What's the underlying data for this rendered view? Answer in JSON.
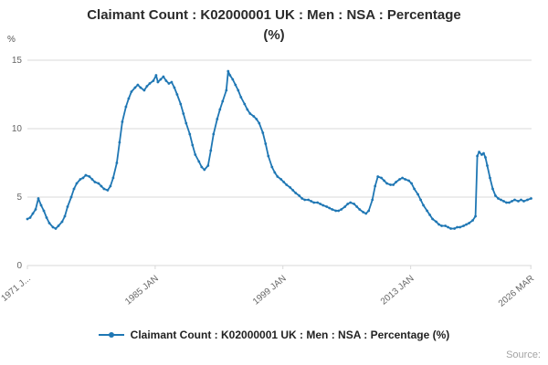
{
  "title": {
    "line1": "Claimant Count : K02000001 UK : Men : NSA : Percentage",
    "line2": "(%)"
  },
  "axes": {
    "y_unit_label": "%"
  },
  "legend": {
    "label": "Claimant Count : K02000001 UK : Men : NSA : Percentage (%)"
  },
  "source_label": "Source:",
  "chart_data": {
    "type": "line",
    "title": "Claimant Count : K02000001 UK : Men : NSA : Percentage (%)",
    "xlabel": "",
    "ylabel": "%",
    "ylim": [
      0,
      15
    ],
    "yticks": [
      0,
      5,
      10,
      15
    ],
    "xlim": [
      1971.0,
      2026.25
    ],
    "xticks": [
      {
        "x": 1971.0,
        "label": "1971 J..."
      },
      {
        "x": 1985.0,
        "label": "1985 JAN"
      },
      {
        "x": 1999.0,
        "label": "1999 JAN"
      },
      {
        "x": 2013.0,
        "label": "2013 JAN"
      },
      {
        "x": 2026.17,
        "label": "2026 MAR"
      }
    ],
    "grid": true,
    "legend_position": "bottom",
    "line_color": "#1f77b4",
    "grid_color": "#d9d9d9",
    "tick_label_color": "#666666",
    "series": [
      {
        "name": "Claimant Count : K02000001 UK : Men : NSA : Percentage (%)",
        "color": "#1f77b4",
        "x_unit": "decimal_year",
        "points": [
          [
            1971.0,
            3.4
          ],
          [
            1971.3,
            3.5
          ],
          [
            1971.6,
            3.8
          ],
          [
            1971.9,
            4.1
          ],
          [
            1972.2,
            4.9
          ],
          [
            1972.5,
            4.4
          ],
          [
            1972.8,
            4.0
          ],
          [
            1973.1,
            3.5
          ],
          [
            1973.4,
            3.1
          ],
          [
            1973.8,
            2.8
          ],
          [
            1974.1,
            2.7
          ],
          [
            1974.4,
            2.9
          ],
          [
            1974.8,
            3.2
          ],
          [
            1975.1,
            3.6
          ],
          [
            1975.4,
            4.3
          ],
          [
            1975.8,
            5.0
          ],
          [
            1976.1,
            5.6
          ],
          [
            1976.4,
            6.0
          ],
          [
            1976.8,
            6.3
          ],
          [
            1977.1,
            6.4
          ],
          [
            1977.4,
            6.6
          ],
          [
            1977.8,
            6.5
          ],
          [
            1978.1,
            6.3
          ],
          [
            1978.4,
            6.1
          ],
          [
            1978.8,
            6.0
          ],
          [
            1979.1,
            5.8
          ],
          [
            1979.4,
            5.6
          ],
          [
            1979.8,
            5.5
          ],
          [
            1980.1,
            5.8
          ],
          [
            1980.4,
            6.4
          ],
          [
            1980.8,
            7.5
          ],
          [
            1981.1,
            9.0
          ],
          [
            1981.4,
            10.5
          ],
          [
            1981.8,
            11.6
          ],
          [
            1982.1,
            12.2
          ],
          [
            1982.4,
            12.7
          ],
          [
            1982.8,
            13.0
          ],
          [
            1983.1,
            13.2
          ],
          [
            1983.4,
            13.0
          ],
          [
            1983.8,
            12.8
          ],
          [
            1984.1,
            13.1
          ],
          [
            1984.4,
            13.3
          ],
          [
            1984.8,
            13.5
          ],
          [
            1985.1,
            13.9
          ],
          [
            1985.3,
            13.4
          ],
          [
            1985.6,
            13.6
          ],
          [
            1985.9,
            13.8
          ],
          [
            1986.2,
            13.5
          ],
          [
            1986.5,
            13.3
          ],
          [
            1986.8,
            13.4
          ],
          [
            1987.1,
            13.0
          ],
          [
            1987.4,
            12.5
          ],
          [
            1987.8,
            11.8
          ],
          [
            1988.1,
            11.1
          ],
          [
            1988.4,
            10.4
          ],
          [
            1988.8,
            9.6
          ],
          [
            1989.1,
            8.8
          ],
          [
            1989.4,
            8.1
          ],
          [
            1989.8,
            7.6
          ],
          [
            1990.1,
            7.2
          ],
          [
            1990.4,
            7.0
          ],
          [
            1990.8,
            7.3
          ],
          [
            1991.1,
            8.4
          ],
          [
            1991.4,
            9.6
          ],
          [
            1991.8,
            10.7
          ],
          [
            1992.1,
            11.4
          ],
          [
            1992.4,
            12.0
          ],
          [
            1992.8,
            12.8
          ],
          [
            1993.0,
            14.2
          ],
          [
            1993.2,
            13.9
          ],
          [
            1993.5,
            13.6
          ],
          [
            1993.8,
            13.2
          ],
          [
            1994.1,
            12.8
          ],
          [
            1994.4,
            12.3
          ],
          [
            1994.8,
            11.8
          ],
          [
            1995.1,
            11.4
          ],
          [
            1995.4,
            11.1
          ],
          [
            1995.8,
            10.9
          ],
          [
            1996.1,
            10.7
          ],
          [
            1996.4,
            10.4
          ],
          [
            1996.8,
            9.7
          ],
          [
            1997.1,
            8.9
          ],
          [
            1997.4,
            8.0
          ],
          [
            1997.8,
            7.2
          ],
          [
            1998.1,
            6.8
          ],
          [
            1998.4,
            6.5
          ],
          [
            1998.8,
            6.3
          ],
          [
            1999.1,
            6.1
          ],
          [
            1999.4,
            5.9
          ],
          [
            1999.8,
            5.7
          ],
          [
            2000.1,
            5.5
          ],
          [
            2000.4,
            5.3
          ],
          [
            2000.8,
            5.1
          ],
          [
            2001.1,
            4.9
          ],
          [
            2001.4,
            4.8
          ],
          [
            2001.8,
            4.8
          ],
          [
            2002.1,
            4.7
          ],
          [
            2002.4,
            4.6
          ],
          [
            2002.8,
            4.6
          ],
          [
            2003.1,
            4.5
          ],
          [
            2003.4,
            4.4
          ],
          [
            2003.8,
            4.3
          ],
          [
            2004.1,
            4.2
          ],
          [
            2004.4,
            4.1
          ],
          [
            2004.8,
            4.0
          ],
          [
            2005.1,
            4.0
          ],
          [
            2005.4,
            4.1
          ],
          [
            2005.8,
            4.3
          ],
          [
            2006.1,
            4.5
          ],
          [
            2006.4,
            4.6
          ],
          [
            2006.8,
            4.5
          ],
          [
            2007.1,
            4.3
          ],
          [
            2007.4,
            4.1
          ],
          [
            2007.8,
            3.9
          ],
          [
            2008.1,
            3.8
          ],
          [
            2008.4,
            4.0
          ],
          [
            2008.8,
            4.8
          ],
          [
            2009.1,
            5.8
          ],
          [
            2009.4,
            6.5
          ],
          [
            2009.8,
            6.4
          ],
          [
            2010.1,
            6.2
          ],
          [
            2010.4,
            6.0
          ],
          [
            2010.8,
            5.9
          ],
          [
            2011.1,
            5.9
          ],
          [
            2011.4,
            6.1
          ],
          [
            2011.8,
            6.3
          ],
          [
            2012.1,
            6.4
          ],
          [
            2012.4,
            6.3
          ],
          [
            2012.8,
            6.2
          ],
          [
            2013.1,
            6.0
          ],
          [
            2013.4,
            5.6
          ],
          [
            2013.8,
            5.2
          ],
          [
            2014.1,
            4.8
          ],
          [
            2014.4,
            4.4
          ],
          [
            2014.8,
            4.0
          ],
          [
            2015.1,
            3.7
          ],
          [
            2015.4,
            3.4
          ],
          [
            2015.8,
            3.2
          ],
          [
            2016.1,
            3.0
          ],
          [
            2016.4,
            2.9
          ],
          [
            2016.8,
            2.9
          ],
          [
            2017.1,
            2.8
          ],
          [
            2017.4,
            2.7
          ],
          [
            2017.8,
            2.7
          ],
          [
            2018.1,
            2.8
          ],
          [
            2018.4,
            2.8
          ],
          [
            2018.8,
            2.9
          ],
          [
            2019.1,
            3.0
          ],
          [
            2019.4,
            3.1
          ],
          [
            2019.8,
            3.3
          ],
          [
            2020.1,
            3.6
          ],
          [
            2020.3,
            8.0
          ],
          [
            2020.5,
            8.3
          ],
          [
            2020.8,
            8.1
          ],
          [
            2021.0,
            8.2
          ],
          [
            2021.2,
            7.9
          ],
          [
            2021.4,
            7.3
          ],
          [
            2021.7,
            6.4
          ],
          [
            2022.0,
            5.6
          ],
          [
            2022.3,
            5.1
          ],
          [
            2022.6,
            4.9
          ],
          [
            2022.9,
            4.8
          ],
          [
            2023.2,
            4.7
          ],
          [
            2023.5,
            4.6
          ],
          [
            2023.8,
            4.6
          ],
          [
            2024.1,
            4.7
          ],
          [
            2024.4,
            4.8
          ],
          [
            2024.8,
            4.7
          ],
          [
            2025.1,
            4.8
          ],
          [
            2025.4,
            4.7
          ],
          [
            2025.8,
            4.8
          ],
          [
            2026.2,
            4.9
          ]
        ]
      }
    ]
  }
}
